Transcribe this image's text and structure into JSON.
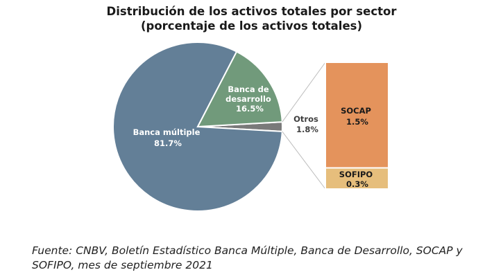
{
  "chart_data": {
    "type": "pie",
    "title_line1": "Distribución de los activos totales por sector",
    "title_line2": "(porcentaje de los activos totales)",
    "slices": [
      {
        "label_line1": "Banca múltiple",
        "label_line2": "",
        "value_text": "81.7%",
        "value": 81.7,
        "color": "#637f97"
      },
      {
        "label_line1": "Banca de",
        "label_line2": "desarrollo",
        "value_text": "16.5%",
        "value": 16.5,
        "color": "#719a7b"
      },
      {
        "label_line1": "Otros",
        "label_line2": "",
        "value_text": "1.8%",
        "value": 1.8,
        "color": "#7a7a7a"
      }
    ],
    "breakdown": {
      "of": "Otros",
      "segments": [
        {
          "label": "SOCAP",
          "value_text": "1.5%",
          "value": 1.5,
          "color": "#e4935c"
        },
        {
          "label": "SOFIPO",
          "value_text": "0.3%",
          "value": 0.3,
          "color": "#e6be7c"
        }
      ]
    }
  },
  "source_text": "Fuente: CNBV, Boletín Estadístico Banca Múltiple, Banca de Desarrollo, SOCAP y SOFIPO, mes de septiembre 2021"
}
